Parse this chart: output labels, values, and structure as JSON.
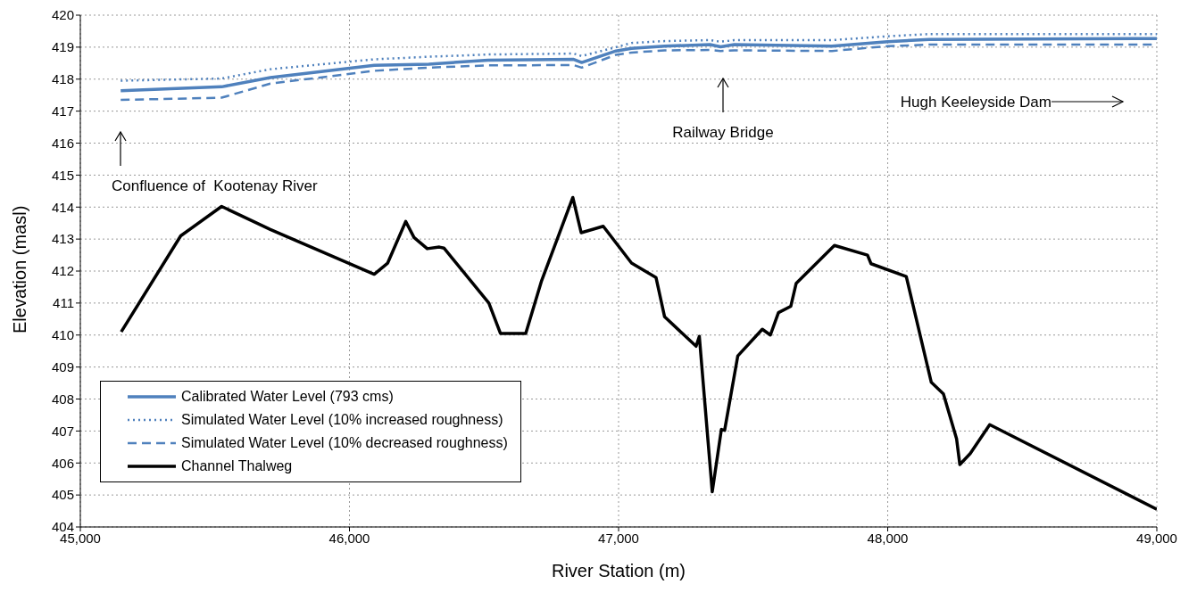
{
  "chart_data": {
    "type": "line",
    "xlabel": "River Station (m)",
    "ylabel": "Elevation (masl)",
    "xlim": [
      45000,
      49000
    ],
    "xticks": [
      {
        "value": 45000,
        "label": "45,000"
      },
      {
        "value": 46000,
        "label": "46,000"
      },
      {
        "value": 47000,
        "label": "47,000"
      },
      {
        "value": 48000,
        "label": "48,000"
      },
      {
        "value": 49000,
        "label": "49,000"
      }
    ],
    "ylim": [
      404,
      420
    ],
    "yticks": [
      404,
      405,
      406,
      407,
      408,
      409,
      410,
      411,
      412,
      413,
      414,
      415,
      416,
      417,
      418,
      419,
      420
    ],
    "grid": true,
    "legend": "bottom left",
    "marker": "none",
    "annotations": [
      "Confluence of  Kootenay River",
      "Railway Bridge",
      "Hugh Keeleyside Dam"
    ],
    "series": [
      {
        "name": "Calibrated Water Level (793 cms)",
        "color": "#4f81bd",
        "line_style": "solid",
        "x": [
          45150,
          45525,
          45706,
          46092,
          46295,
          46515,
          46833,
          46863,
          46990,
          47048,
          47171,
          47340,
          47379,
          47430,
          47793,
          48000,
          48155,
          49000
        ],
        "values": [
          417.64,
          417.76,
          418.05,
          418.43,
          418.47,
          418.59,
          418.62,
          418.52,
          418.88,
          418.96,
          419.03,
          419.08,
          419.01,
          419.08,
          419.03,
          419.17,
          419.24,
          419.27
        ]
      },
      {
        "name": "Simulated Water Level (10% increased roughness)",
        "color": "#4f81bd",
        "line_style": "dotted",
        "x": [
          45150,
          45525,
          45706,
          46092,
          46295,
          46515,
          46833,
          46863,
          46990,
          47048,
          47171,
          47340,
          47379,
          47430,
          47793,
          48000,
          48155,
          49000
        ],
        "values": [
          417.95,
          418.02,
          418.31,
          418.62,
          418.7,
          418.77,
          418.8,
          418.72,
          419.0,
          419.13,
          419.19,
          419.22,
          419.17,
          419.22,
          419.22,
          419.34,
          419.41,
          419.41
        ]
      },
      {
        "name": "Simulated Water Level (10% decreased roughness)",
        "color": "#4f81bd",
        "line_style": "dashed",
        "x": [
          45150,
          45525,
          45706,
          46092,
          46295,
          46515,
          46833,
          46863,
          46990,
          47048,
          47171,
          47340,
          47379,
          47430,
          47793,
          48000,
          48155,
          49000
        ],
        "values": [
          417.35,
          417.42,
          417.86,
          418.26,
          418.36,
          418.43,
          418.44,
          418.36,
          418.76,
          418.83,
          418.9,
          418.91,
          418.88,
          418.9,
          418.88,
          419.03,
          419.08,
          419.08
        ]
      },
      {
        "name": "Channel Thalweg",
        "color": "#000000",
        "line_style": "solid",
        "x": [
          45152,
          45373,
          45525,
          45706,
          46092,
          46142,
          46209,
          46240,
          46289,
          46334,
          46351,
          46518,
          46561,
          46655,
          46714,
          46830,
          46861,
          46943,
          47048,
          47139,
          47171,
          47288,
          47300,
          47348,
          47382,
          47394,
          47443,
          47534,
          47564,
          47594,
          47640,
          47660,
          47802,
          47925,
          47938,
          48069,
          48162,
          48207,
          48256,
          48268,
          48307,
          48379,
          49000
        ],
        "values": [
          410.1,
          413.1,
          414.02,
          413.3,
          411.9,
          412.25,
          413.55,
          413.05,
          412.7,
          412.75,
          412.72,
          411.0,
          410.05,
          410.05,
          411.7,
          414.3,
          413.2,
          413.4,
          412.25,
          411.8,
          410.57,
          409.65,
          409.96,
          405.1,
          407.05,
          407.02,
          409.35,
          410.18,
          410.0,
          410.7,
          410.9,
          411.62,
          412.8,
          412.5,
          412.23,
          411.83,
          408.52,
          408.16,
          406.75,
          405.95,
          406.3,
          407.2,
          404.55
        ]
      }
    ]
  }
}
